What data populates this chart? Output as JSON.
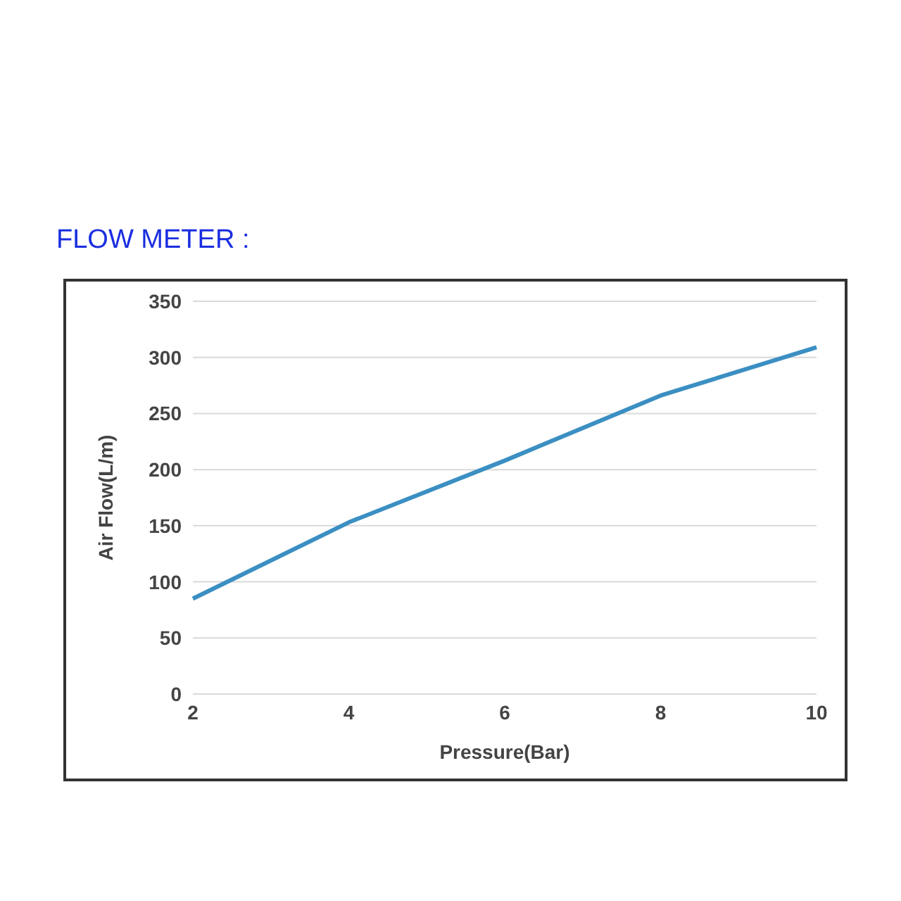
{
  "chart_data": {
    "type": "line",
    "title": "FLOW METER :",
    "xlabel": "Pressure(Bar)",
    "ylabel": "Air Flow(L/m)",
    "categories": [
      "2",
      "4",
      "6",
      "8",
      "10"
    ],
    "series": [
      {
        "color": "#3b8fc2",
        "values": [
          85,
          153,
          208,
          266,
          309
        ]
      }
    ],
    "ylim": [
      0,
      350
    ],
    "yticks": [
      0,
      50,
      100,
      150,
      200,
      250,
      300,
      350
    ],
    "grid": "y",
    "legend": false,
    "marker": "none",
    "line_style": "solid"
  }
}
